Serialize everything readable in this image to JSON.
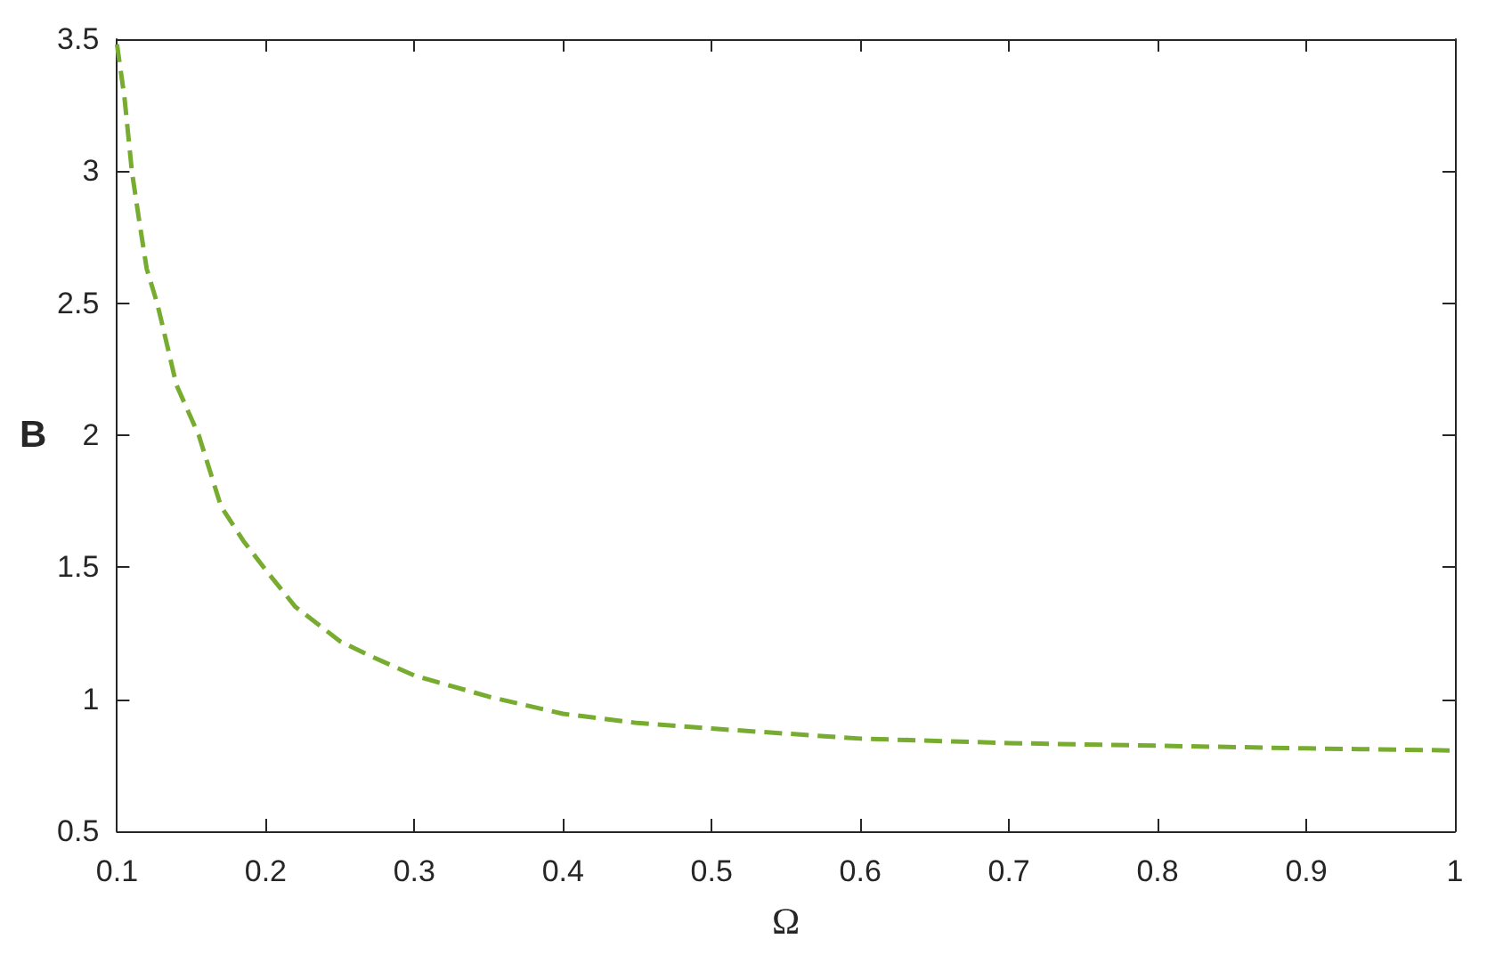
{
  "chart_data": {
    "type": "line",
    "xlabel": "Ω",
    "ylabel": "B",
    "x": [
      0.1,
      0.105,
      0.11,
      0.115,
      0.12,
      0.127,
      0.13,
      0.14,
      0.155,
      0.17,
      0.185,
      0.2,
      0.22,
      0.25,
      0.27,
      0.3,
      0.35,
      0.4,
      0.45,
      0.5,
      0.6,
      0.7,
      0.8,
      0.9,
      1.0
    ],
    "series": [
      {
        "color": "#77ac30",
        "values": [
          3.48,
          3.28,
          3.0,
          2.81,
          2.63,
          2.5,
          2.43,
          2.19,
          2.0,
          1.73,
          1.6,
          1.49,
          1.35,
          1.22,
          1.165,
          1.09,
          1.01,
          0.945,
          0.91,
          0.889,
          0.851,
          0.834,
          0.824,
          0.814,
          0.806
        ]
      }
    ],
    "xlim": [
      0.1,
      1
    ],
    "xticks": [
      0.1,
      0.2,
      0.3,
      0.4,
      0.5,
      0.6,
      0.7,
      0.8,
      0.9,
      1
    ],
    "ylim": [
      0.5,
      3.5
    ],
    "yticks": [
      0.5,
      1,
      1.5,
      2,
      2.5,
      3,
      3.5
    ],
    "line_style": "dashed"
  }
}
